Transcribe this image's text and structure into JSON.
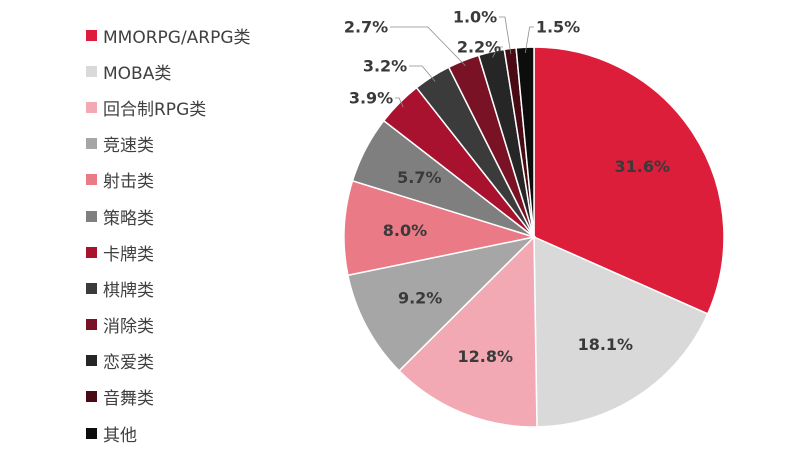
{
  "chart_data": {
    "type": "pie",
    "title": "",
    "legend_position": "left",
    "series": [
      {
        "name": "MMORPG/ARPG类",
        "value": 31.6,
        "label": "31.6%",
        "color": "#dc1e3a"
      },
      {
        "name": "MOBA类",
        "value": 18.1,
        "label": "18.1%",
        "color": "#d9d9d9"
      },
      {
        "name": "回合制RPG类",
        "value": 12.8,
        "label": "12.8%",
        "color": "#f2a9b3"
      },
      {
        "name": "竞速类",
        "value": 9.2,
        "label": "9.2%",
        "color": "#a6a6a6"
      },
      {
        "name": "射击类",
        "value": 8.0,
        "label": "8.0%",
        "color": "#ea7a86"
      },
      {
        "name": "策略类",
        "value": 5.7,
        "label": "5.7%",
        "color": "#7f7f7f"
      },
      {
        "name": "卡牌类",
        "value": 3.9,
        "label": "3.9%",
        "color": "#a8122e"
      },
      {
        "name": "棋牌类",
        "value": 3.2,
        "label": "3.2%",
        "color": "#3b3b3b"
      },
      {
        "name": "消除类",
        "value": 2.7,
        "label": "2.7%",
        "color": "#7a1226"
      },
      {
        "name": "恋爱类",
        "value": 2.2,
        "label": "2.2%",
        "color": "#262626"
      },
      {
        "name": "音舞类",
        "value": 1.0,
        "label": "1.0%",
        "color": "#4a0a14"
      },
      {
        "name": "其他",
        "value": 1.5,
        "label": "1.5%",
        "color": "#0d0d0d"
      }
    ]
  }
}
